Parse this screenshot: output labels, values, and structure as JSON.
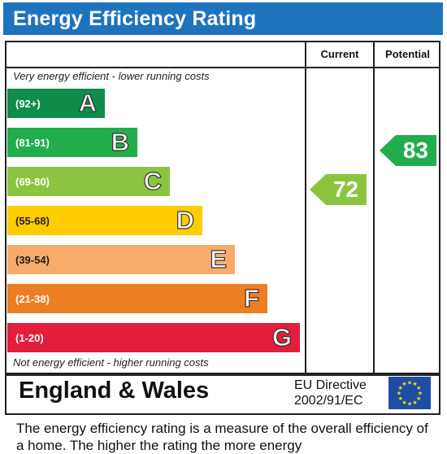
{
  "header": {
    "title": "Energy Efficiency Rating"
  },
  "columns": {
    "current": "Current",
    "potential": "Potential"
  },
  "captions": {
    "top": "Very energy efficient - lower running costs",
    "bottom": "Not energy efficient - higher running costs"
  },
  "chart_data": {
    "type": "bar",
    "title": "Energy Efficiency Rating",
    "bands": [
      {
        "range": "(92+)",
        "letter": "A",
        "color": "#0e8c4a"
      },
      {
        "range": "(81-91)",
        "letter": "B",
        "color": "#22ad4c"
      },
      {
        "range": "(69-80)",
        "letter": "C",
        "color": "#8bc53f"
      },
      {
        "range": "(55-68)",
        "letter": "D",
        "color": "#ffcc00"
      },
      {
        "range": "(39-54)",
        "letter": "E",
        "color": "#f7ac6b"
      },
      {
        "range": "(21-38)",
        "letter": "F",
        "color": "#ef7d22"
      },
      {
        "range": "(1-20)",
        "letter": "G",
        "color": "#e31d3c"
      }
    ],
    "current": {
      "value": "72",
      "band": "C",
      "color": "#8bc53f"
    },
    "potential": {
      "value": "83",
      "band": "B",
      "color": "#22ad4c"
    }
  },
  "footer": {
    "region": "England & Wales",
    "directive_line1": "EU Directive",
    "directive_line2": "2002/91/EC"
  },
  "description": "The energy efficiency rating is a measure of the overall efficiency of a home. The higher the rating the more energy"
}
